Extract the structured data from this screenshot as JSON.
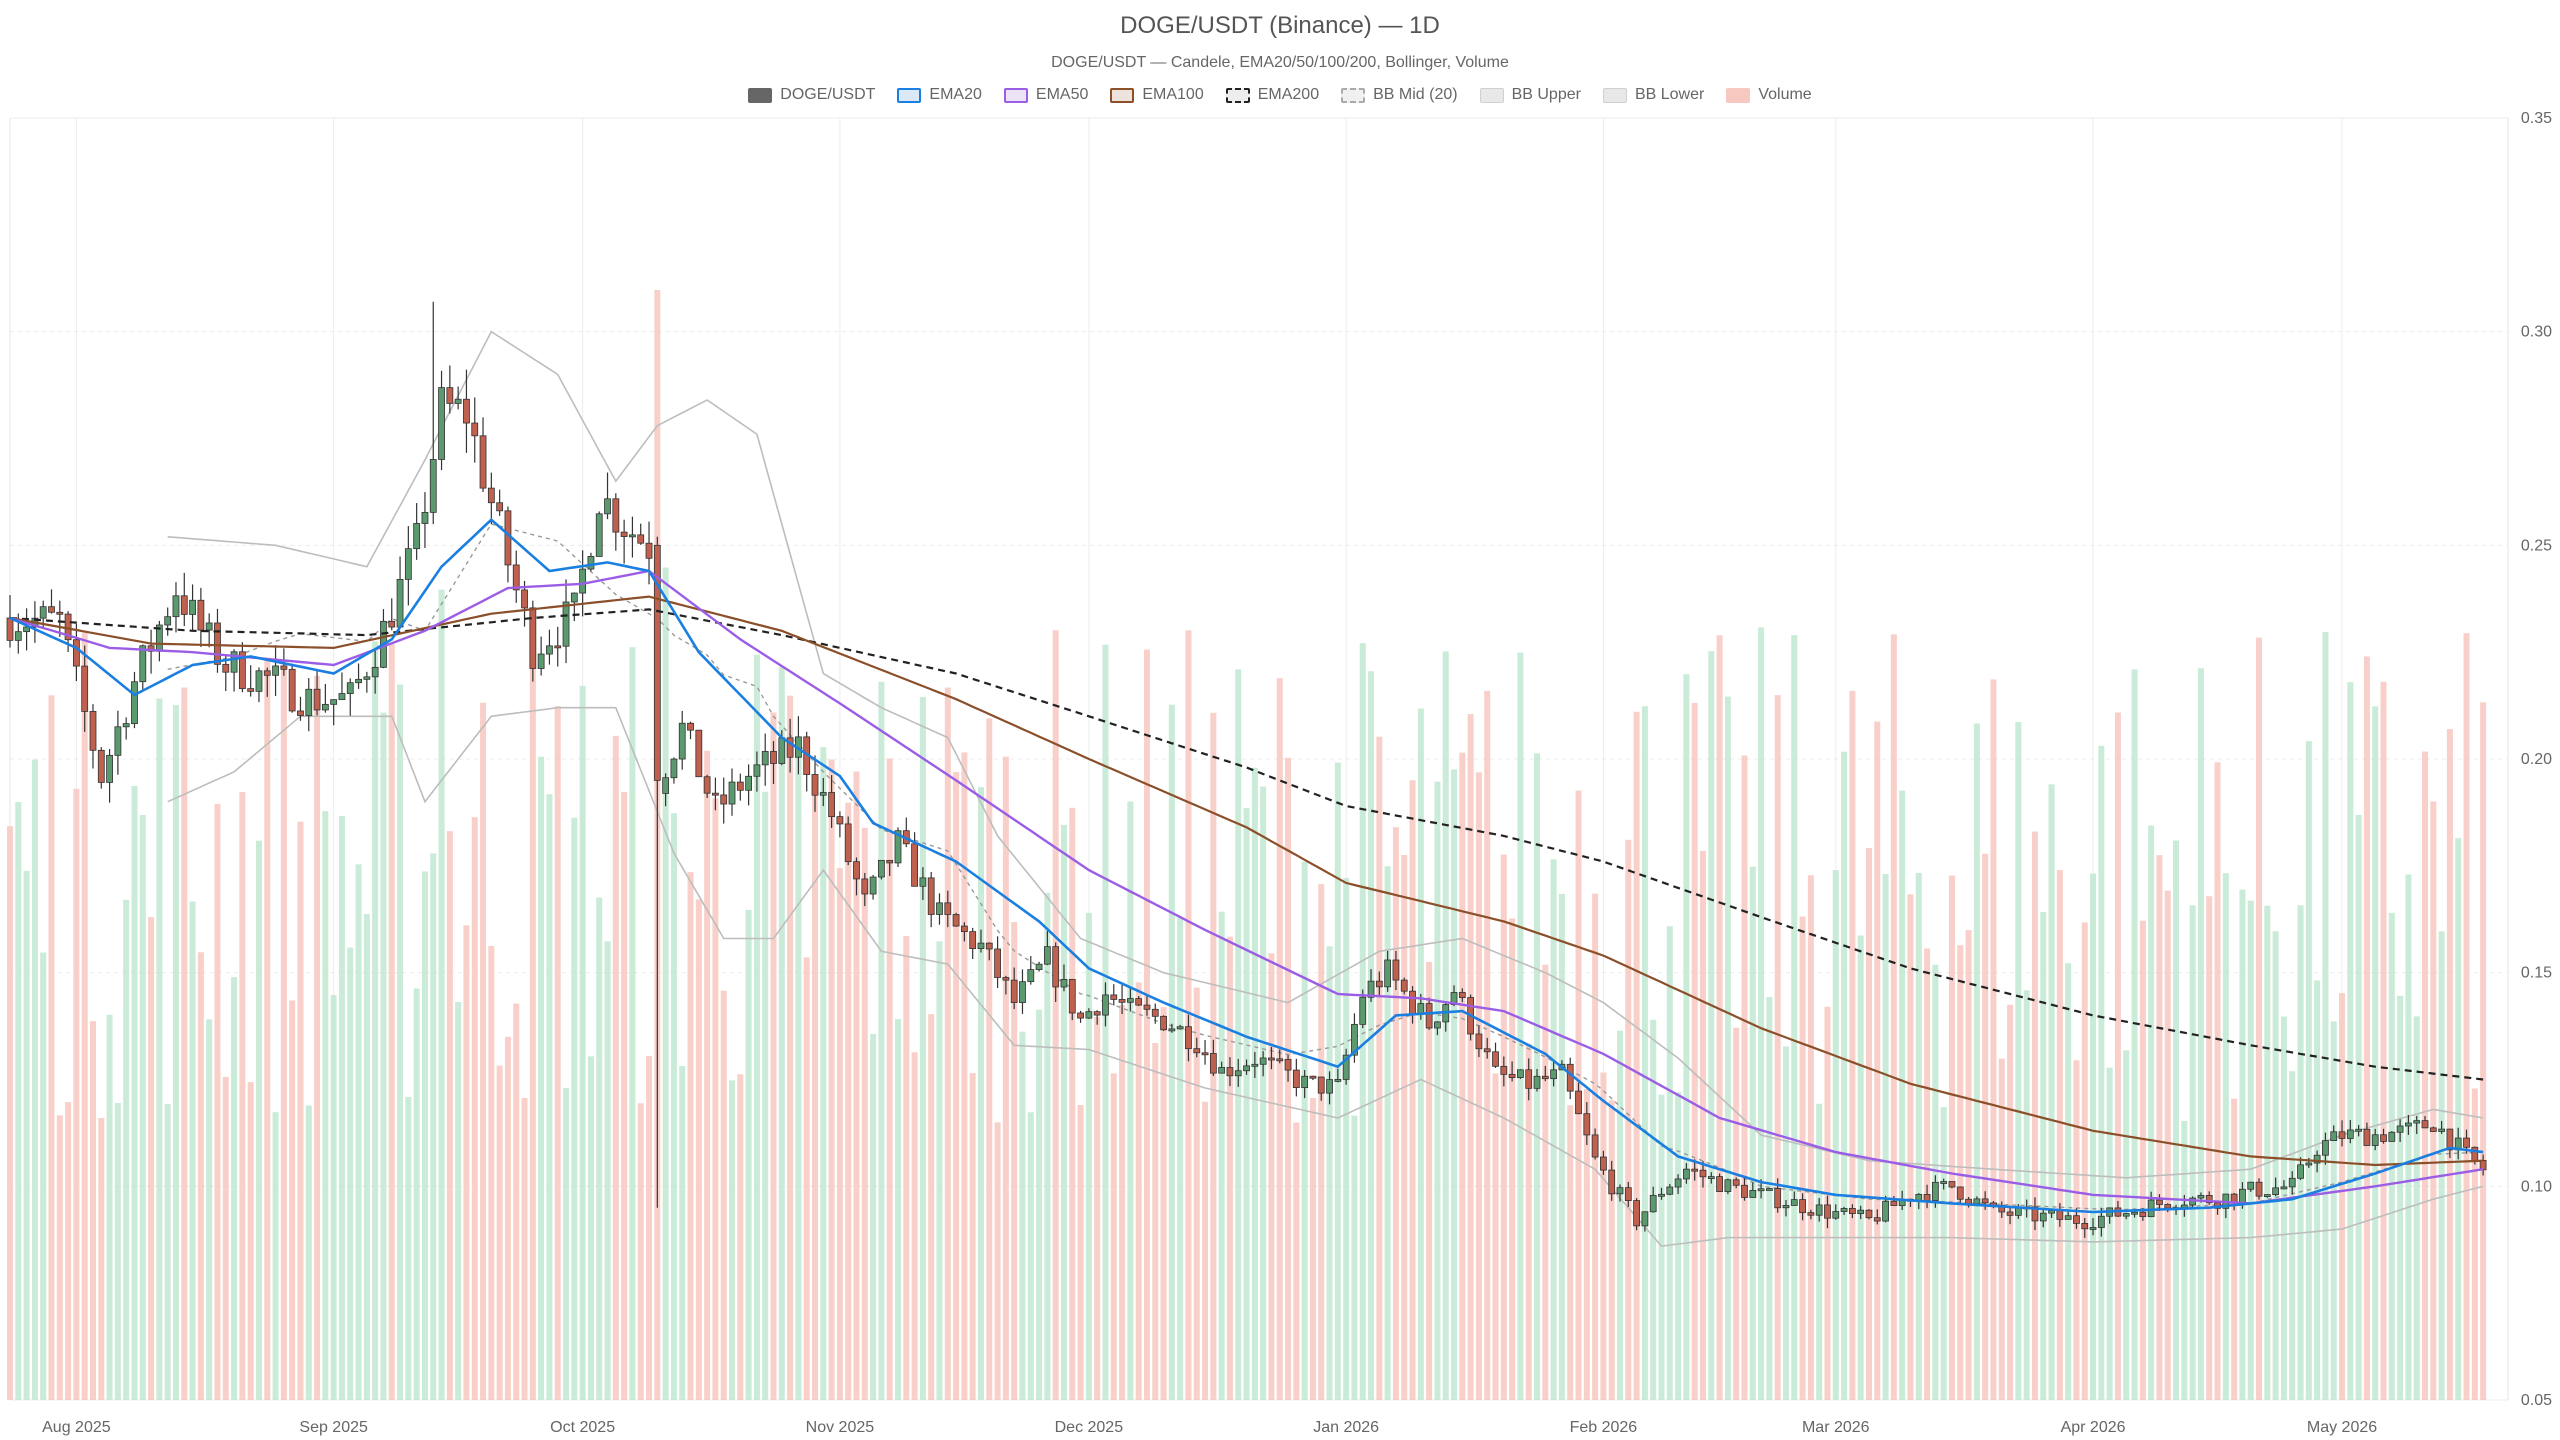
{
  "chart_data": {
    "type": "candlestick",
    "title": "DOGE/USDT (Binance) — 1D",
    "subtitle": "DOGE/USDT — Candele, EMA20/50/100/200, Bollinger, Volume",
    "legend_placement": "top-center",
    "grid": true,
    "ylim": [
      0.05,
      0.35
    ],
    "y_ticks": [
      "0.05",
      "0.10",
      "0.15",
      "0.20",
      "0.25",
      "0.30",
      "0.35"
    ],
    "x_ticks": [
      {
        "label": "Aug 2025",
        "date": "2025-08-01"
      },
      {
        "label": "Sep 2025",
        "date": "2025-09-01"
      },
      {
        "label": "Oct 2025",
        "date": "2025-10-01"
      },
      {
        "label": "Nov 2025",
        "date": "2025-11-01"
      },
      {
        "label": "Dec 2025",
        "date": "2025-12-01"
      },
      {
        "label": "Jan 2026",
        "date": "2026-01-01"
      },
      {
        "label": "Feb 2026",
        "date": "2026-02-01"
      },
      {
        "label": "Mar 2026",
        "date": "2026-03-01"
      },
      {
        "label": "Apr 2026",
        "date": "2026-04-01"
      },
      {
        "label": "May 2026",
        "date": "2026-05-01"
      }
    ],
    "x_range": [
      "2025-07-24",
      "2026-05-21"
    ],
    "colors": {
      "up": "#5a9a6e",
      "down": "#c0604e",
      "ema20": "#1a7fe0",
      "ema50": "#9b5de5",
      "ema100": "#8b4f2a",
      "ema200": "#222222",
      "bb": "#bdbdbd",
      "vol_up": "#bfe8d0",
      "vol_down": "#f7c8c0"
    },
    "legend": [
      {
        "label": "DOGE/USDT",
        "key": "candles"
      },
      {
        "label": "EMA20",
        "key": "ema20"
      },
      {
        "label": "EMA50",
        "key": "ema50"
      },
      {
        "label": "EMA100",
        "key": "ema100"
      },
      {
        "label": "EMA200",
        "key": "ema200"
      },
      {
        "label": "BB Mid (20)",
        "key": "bbmid"
      },
      {
        "label": "BB Upper",
        "key": "bbupper"
      },
      {
        "label": "BB Lower",
        "key": "bblower"
      },
      {
        "label": "Volume",
        "key": "volume"
      }
    ],
    "price_anchors": [
      [
        "2025-07-24",
        0.233
      ],
      [
        "2025-07-30",
        0.232
      ],
      [
        "2025-08-04",
        0.196
      ],
      [
        "2025-08-08",
        0.218
      ],
      [
        "2025-08-13",
        0.24
      ],
      [
        "2025-08-16",
        0.23
      ],
      [
        "2025-08-19",
        0.222
      ],
      [
        "2025-08-25",
        0.218
      ],
      [
        "2025-08-29",
        0.214
      ],
      [
        "2025-09-03",
        0.214
      ],
      [
        "2025-09-07",
        0.23
      ],
      [
        "2025-09-11",
        0.25
      ],
      [
        "2025-09-14",
        0.282
      ],
      [
        "2025-09-17",
        0.281
      ],
      [
        "2025-09-22",
        0.246
      ],
      [
        "2025-09-25",
        0.226
      ],
      [
        "2025-09-30",
        0.234
      ],
      [
        "2025-10-03",
        0.262
      ],
      [
        "2025-10-06",
        0.255
      ],
      [
        "2025-10-09",
        0.25
      ],
      [
        "2025-10-10",
        0.195
      ],
      [
        "2025-10-13",
        0.207
      ],
      [
        "2025-10-17",
        0.188
      ],
      [
        "2025-10-21",
        0.196
      ],
      [
        "2025-10-27",
        0.203
      ],
      [
        "2025-10-31",
        0.187
      ],
      [
        "2025-11-04",
        0.166
      ],
      [
        "2025-11-08",
        0.18
      ],
      [
        "2025-11-13",
        0.163
      ],
      [
        "2025-11-18",
        0.156
      ],
      [
        "2025-11-22",
        0.143
      ],
      [
        "2025-11-26",
        0.153
      ],
      [
        "2025-11-30",
        0.139
      ],
      [
        "2025-12-03",
        0.145
      ],
      [
        "2025-12-06",
        0.141
      ],
      [
        "2025-12-10",
        0.139
      ],
      [
        "2025-12-14",
        0.134
      ],
      [
        "2025-12-17",
        0.127
      ],
      [
        "2025-12-21",
        0.13
      ],
      [
        "2025-12-27",
        0.124
      ],
      [
        "2025-12-31",
        0.123
      ],
      [
        "2026-01-03",
        0.145
      ],
      [
        "2026-01-06",
        0.15
      ],
      [
        "2026-01-11",
        0.138
      ],
      [
        "2026-01-14",
        0.146
      ],
      [
        "2026-01-19",
        0.126
      ],
      [
        "2026-01-23",
        0.124
      ],
      [
        "2026-01-27",
        0.126
      ],
      [
        "2026-01-31",
        0.106
      ],
      [
        "2026-02-05",
        0.092
      ],
      [
        "2026-02-08",
        0.099
      ],
      [
        "2026-02-11",
        0.104
      ],
      [
        "2026-02-16",
        0.1
      ],
      [
        "2026-02-22",
        0.097
      ],
      [
        "2026-02-28",
        0.094
      ],
      [
        "2026-03-05",
        0.092
      ],
      [
        "2026-03-10",
        0.098
      ],
      [
        "2026-03-15",
        0.1
      ],
      [
        "2026-03-20",
        0.094
      ],
      [
        "2026-03-25",
        0.093
      ],
      [
        "2026-03-31",
        0.092
      ],
      [
        "2026-04-05",
        0.094
      ],
      [
        "2026-04-11",
        0.097
      ],
      [
        "2026-04-16",
        0.097
      ],
      [
        "2026-04-20",
        0.099
      ],
      [
        "2026-04-25",
        0.1
      ],
      [
        "2026-04-28",
        0.109
      ],
      [
        "2026-05-01",
        0.112
      ],
      [
        "2026-05-05",
        0.112
      ],
      [
        "2026-05-09",
        0.113
      ],
      [
        "2026-05-12",
        0.115
      ],
      [
        "2026-05-16",
        0.107
      ],
      [
        "2026-05-18",
        0.104
      ]
    ],
    "ema20_anchors": [
      [
        "2025-07-24",
        0.233
      ],
      [
        "2025-08-01",
        0.226
      ],
      [
        "2025-08-08",
        0.215
      ],
      [
        "2025-08-15",
        0.222
      ],
      [
        "2025-08-22",
        0.224
      ],
      [
        "2025-09-01",
        0.22
      ],
      [
        "2025-09-08",
        0.228
      ],
      [
        "2025-09-14",
        0.245
      ],
      [
        "2025-09-20",
        0.256
      ],
      [
        "2025-09-27",
        0.244
      ],
      [
        "2025-10-04",
        0.246
      ],
      [
        "2025-10-09",
        0.244
      ],
      [
        "2025-10-15",
        0.225
      ],
      [
        "2025-10-25",
        0.205
      ],
      [
        "2025-11-01",
        0.196
      ],
      [
        "2025-11-05",
        0.185
      ],
      [
        "2025-11-15",
        0.176
      ],
      [
        "2025-11-25",
        0.162
      ],
      [
        "2025-12-01",
        0.151
      ],
      [
        "2025-12-10",
        0.143
      ],
      [
        "2025-12-20",
        0.135
      ],
      [
        "2025-12-31",
        0.128
      ],
      [
        "2026-01-07",
        0.14
      ],
      [
        "2026-01-15",
        0.141
      ],
      [
        "2026-01-25",
        0.131
      ],
      [
        "2026-02-01",
        0.12
      ],
      [
        "2026-02-10",
        0.107
      ],
      [
        "2026-02-20",
        0.101
      ],
      [
        "2026-03-01",
        0.098
      ],
      [
        "2026-03-15",
        0.096
      ],
      [
        "2026-04-01",
        0.094
      ],
      [
        "2026-04-15",
        0.095
      ],
      [
        "2026-04-25",
        0.097
      ],
      [
        "2026-05-05",
        0.103
      ],
      [
        "2026-05-14",
        0.109
      ],
      [
        "2026-05-18",
        0.108
      ]
    ],
    "ema50_anchors": [
      [
        "2025-07-24",
        0.233
      ],
      [
        "2025-08-05",
        0.226
      ],
      [
        "2025-08-15",
        0.225
      ],
      [
        "2025-09-01",
        0.222
      ],
      [
        "2025-09-12",
        0.23
      ],
      [
        "2025-09-22",
        0.24
      ],
      [
        "2025-10-01",
        0.241
      ],
      [
        "2025-10-09",
        0.244
      ],
      [
        "2025-10-20",
        0.228
      ],
      [
        "2025-11-01",
        0.213
      ],
      [
        "2025-11-15",
        0.195
      ],
      [
        "2025-12-01",
        0.174
      ],
      [
        "2025-12-15",
        0.16
      ],
      [
        "2025-12-31",
        0.145
      ],
      [
        "2026-01-10",
        0.144
      ],
      [
        "2026-01-20",
        0.141
      ],
      [
        "2026-02-01",
        0.131
      ],
      [
        "2026-02-15",
        0.116
      ],
      [
        "2026-03-01",
        0.108
      ],
      [
        "2026-03-15",
        0.103
      ],
      [
        "2026-04-01",
        0.098
      ],
      [
        "2026-04-20",
        0.096
      ],
      [
        "2026-05-05",
        0.1
      ],
      [
        "2026-05-18",
        0.104
      ]
    ],
    "ema100_anchors": [
      [
        "2025-07-24",
        0.233
      ],
      [
        "2025-08-10",
        0.227
      ],
      [
        "2025-09-01",
        0.226
      ],
      [
        "2025-09-20",
        0.234
      ],
      [
        "2025-10-09",
        0.238
      ],
      [
        "2025-10-25",
        0.23
      ],
      [
        "2025-11-15",
        0.214
      ],
      [
        "2025-12-01",
        0.2
      ],
      [
        "2025-12-20",
        0.184
      ],
      [
        "2026-01-01",
        0.171
      ],
      [
        "2026-01-20",
        0.162
      ],
      [
        "2026-02-01",
        0.154
      ],
      [
        "2026-02-20",
        0.137
      ],
      [
        "2026-03-10",
        0.124
      ],
      [
        "2026-04-01",
        0.113
      ],
      [
        "2026-04-20",
        0.107
      ],
      [
        "2026-05-05",
        0.105
      ],
      [
        "2026-05-18",
        0.106
      ]
    ],
    "ema200_anchors": [
      [
        "2025-07-24",
        0.233
      ],
      [
        "2025-08-15",
        0.23
      ],
      [
        "2025-09-05",
        0.229
      ],
      [
        "2025-09-25",
        0.233
      ],
      [
        "2025-10-09",
        0.235
      ],
      [
        "2025-10-25",
        0.229
      ],
      [
        "2025-11-15",
        0.22
      ],
      [
        "2025-12-01",
        0.21
      ],
      [
        "2025-12-20",
        0.198
      ],
      [
        "2026-01-01",
        0.189
      ],
      [
        "2026-01-20",
        0.182
      ],
      [
        "2026-02-01",
        0.176
      ],
      [
        "2026-02-20",
        0.163
      ],
      [
        "2026-03-10",
        0.151
      ],
      [
        "2026-04-01",
        0.14
      ],
      [
        "2026-04-20",
        0.133
      ],
      [
        "2026-05-05",
        0.128
      ],
      [
        "2026-05-18",
        0.125
      ]
    ],
    "bb_upper_anchors": [
      [
        "2025-08-12",
        0.252
      ],
      [
        "2025-08-25",
        0.25
      ],
      [
        "2025-09-05",
        0.245
      ],
      [
        "2025-09-12",
        0.27
      ],
      [
        "2025-09-20",
        0.3
      ],
      [
        "2025-09-28",
        0.29
      ],
      [
        "2025-10-05",
        0.265
      ],
      [
        "2025-10-10",
        0.278
      ],
      [
        "2025-10-16",
        0.284
      ],
      [
        "2025-10-22",
        0.276
      ],
      [
        "2025-10-30",
        0.22
      ],
      [
        "2025-11-06",
        0.212
      ],
      [
        "2025-11-14",
        0.205
      ],
      [
        "2025-11-20",
        0.182
      ],
      [
        "2025-11-30",
        0.158
      ],
      [
        "2025-12-10",
        0.15
      ],
      [
        "2025-12-25",
        0.143
      ],
      [
        "2026-01-05",
        0.155
      ],
      [
        "2026-01-15",
        0.158
      ],
      [
        "2026-01-25",
        0.15
      ],
      [
        "2026-02-01",
        0.143
      ],
      [
        "2026-02-10",
        0.13
      ],
      [
        "2026-02-20",
        0.112
      ],
      [
        "2026-03-05",
        0.106
      ],
      [
        "2026-03-20",
        0.104
      ],
      [
        "2026-04-05",
        0.102
      ],
      [
        "2026-04-20",
        0.104
      ],
      [
        "2026-05-01",
        0.112
      ],
      [
        "2026-05-12",
        0.118
      ],
      [
        "2026-05-18",
        0.116
      ]
    ],
    "bb_lower_anchors": [
      [
        "2025-08-12",
        0.19
      ],
      [
        "2025-08-20",
        0.197
      ],
      [
        "2025-08-28",
        0.21
      ],
      [
        "2025-09-08",
        0.21
      ],
      [
        "2025-09-12",
        0.19
      ],
      [
        "2025-09-20",
        0.21
      ],
      [
        "2025-09-28",
        0.212
      ],
      [
        "2025-10-05",
        0.212
      ],
      [
        "2025-10-12",
        0.178
      ],
      [
        "2025-10-18",
        0.158
      ],
      [
        "2025-10-24",
        0.158
      ],
      [
        "2025-10-30",
        0.174
      ],
      [
        "2025-11-06",
        0.155
      ],
      [
        "2025-11-14",
        0.152
      ],
      [
        "2025-11-22",
        0.133
      ],
      [
        "2025-12-01",
        0.132
      ],
      [
        "2025-12-15",
        0.123
      ],
      [
        "2025-12-31",
        0.116
      ],
      [
        "2026-01-10",
        0.125
      ],
      [
        "2026-01-20",
        0.116
      ],
      [
        "2026-01-31",
        0.104
      ],
      [
        "2026-02-08",
        0.086
      ],
      [
        "2026-02-16",
        0.088
      ],
      [
        "2026-03-01",
        0.088
      ],
      [
        "2026-03-15",
        0.088
      ],
      [
        "2026-04-01",
        0.087
      ],
      [
        "2026-04-20",
        0.088
      ],
      [
        "2026-05-01",
        0.09
      ],
      [
        "2026-05-12",
        0.097
      ],
      [
        "2026-05-18",
        0.1
      ]
    ]
  }
}
